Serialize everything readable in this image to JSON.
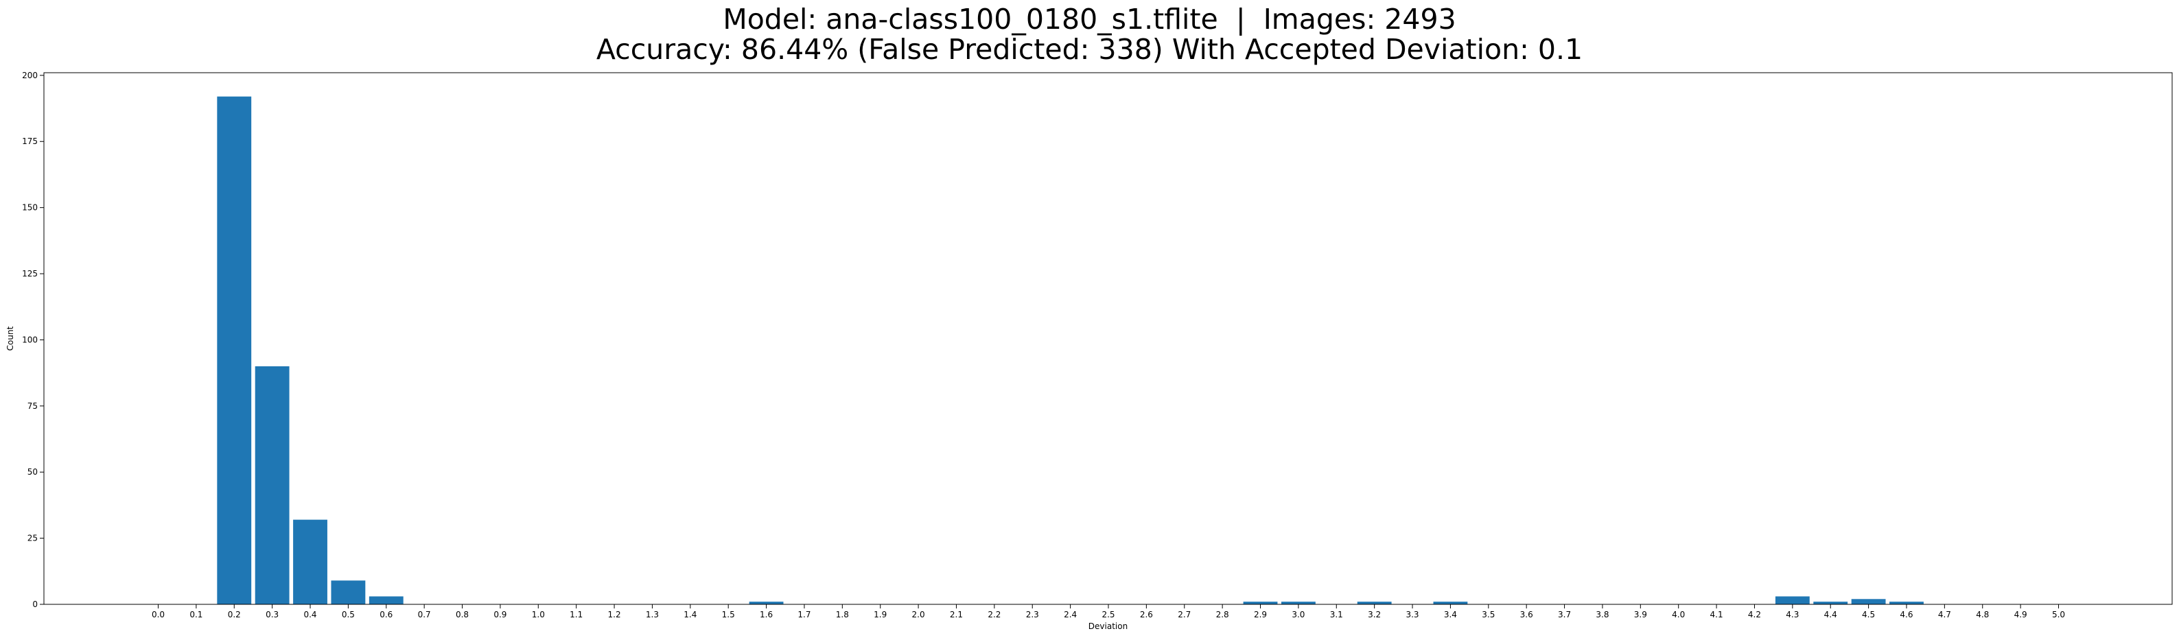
{
  "chart_data": {
    "type": "bar",
    "title_lines": [
      "Model: ana-class100_0180_s1.tflite  |  Images: 2493",
      "Accuracy: 86.44% (False Predicted: 338) With Accepted Deviation: 0.1"
    ],
    "xlabel": "Deviation",
    "ylabel": "Count",
    "categories": [
      "0.0",
      "0.1",
      "0.2",
      "0.3",
      "0.4",
      "0.5",
      "0.6",
      "0.7",
      "0.8",
      "0.9",
      "1.0",
      "1.1",
      "1.2",
      "1.3",
      "1.4",
      "1.5",
      "1.6",
      "1.7",
      "1.8",
      "1.9",
      "2.0",
      "2.1",
      "2.2",
      "2.3",
      "2.4",
      "2.5",
      "2.6",
      "2.7",
      "2.8",
      "2.9",
      "3.0",
      "3.1",
      "3.2",
      "3.3",
      "3.4",
      "3.5",
      "3.6",
      "3.7",
      "3.8",
      "3.9",
      "4.0",
      "4.1",
      "4.2",
      "4.3",
      "4.4",
      "4.5",
      "4.6",
      "4.7",
      "4.8",
      "4.9",
      "5.0"
    ],
    "values": [
      0,
      0,
      192,
      90,
      32,
      9,
      3,
      0,
      0,
      0,
      0,
      0,
      0,
      0,
      0,
      0,
      1,
      0,
      0,
      0,
      0,
      0,
      0,
      0,
      0,
      0,
      0,
      0,
      0,
      1,
      1,
      0,
      1,
      0,
      1,
      0,
      0,
      0,
      0,
      0,
      0,
      0,
      0,
      3,
      1,
      2,
      1,
      0,
      0,
      0,
      0
    ],
    "ylim": [
      0,
      201
    ],
    "yticks": [
      0,
      25,
      50,
      75,
      100,
      125,
      150,
      175,
      200
    ],
    "grid": false,
    "bar_color": "#1f77b4"
  }
}
